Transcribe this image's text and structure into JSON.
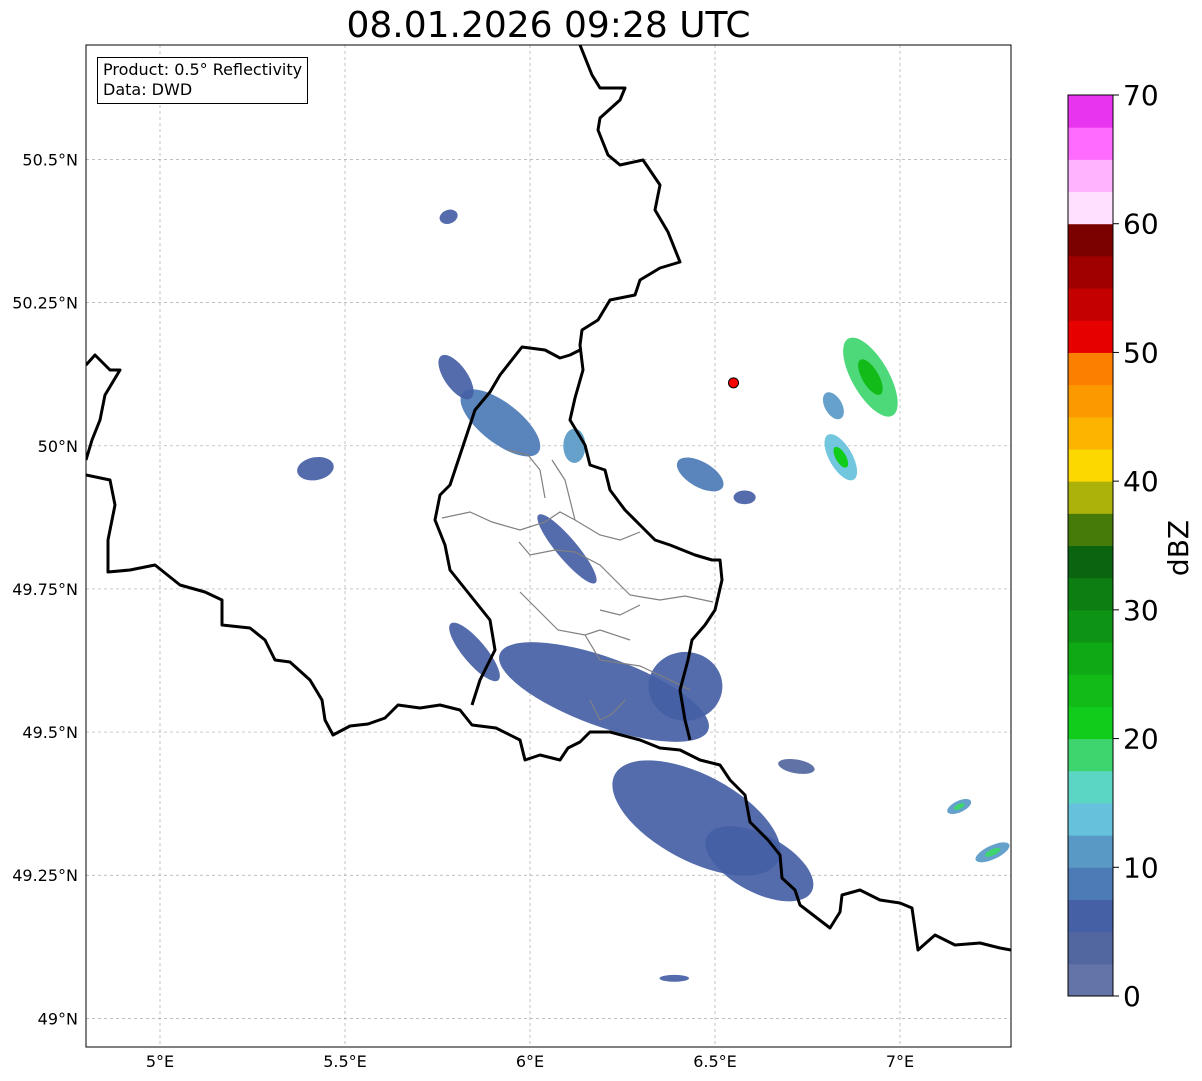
{
  "title": "08.01.2026 09:28 UTC",
  "info": {
    "product": "Product: 0.5° Reflectivity",
    "data": "Data: DWD"
  },
  "map": {
    "lon_range": [
      4.8,
      7.3
    ],
    "lat_range": [
      48.95,
      50.7
    ],
    "lon_ticks": [
      {
        "value": 5.0,
        "label": "5°E"
      },
      {
        "value": 5.5,
        "label": "5.5°E"
      },
      {
        "value": 6.0,
        "label": "6°E"
      },
      {
        "value": 6.5,
        "label": "6.5°E"
      },
      {
        "value": 7.0,
        "label": "7°E"
      }
    ],
    "lat_ticks": [
      {
        "value": 49.0,
        "label": "49°N"
      },
      {
        "value": 49.25,
        "label": "49.25°N"
      },
      {
        "value": 49.5,
        "label": "49.5°N"
      },
      {
        "value": 49.75,
        "label": "49.75°N"
      },
      {
        "value": 50.0,
        "label": "50°N"
      },
      {
        "value": 50.25,
        "label": "50.25°N"
      },
      {
        "value": 50.5,
        "label": "50.5°N"
      }
    ],
    "grid": true,
    "radar_site": {
      "lon": 6.55,
      "lat": 50.11,
      "color": "#ff0000"
    }
  },
  "colorbar": {
    "label": "dBZ",
    "min": 0,
    "max": 70,
    "ticks": [
      0,
      10,
      20,
      30,
      40,
      50,
      60,
      70
    ],
    "step": 2.5,
    "colors": [
      "#6473a8",
      "#52679f",
      "#4560a5",
      "#4c7bb6",
      "#5899c6",
      "#66c2dc",
      "#5cd6c4",
      "#3ed56f",
      "#12cc1c",
      "#12bb18",
      "#10a916",
      "#0e9414",
      "#0c7e12",
      "#0a6410",
      "#467b0a",
      "#adb20a",
      "#fdd700",
      "#fcb400",
      "#fc9800",
      "#fc7f00",
      "#e60000",
      "#c40000",
      "#a00000",
      "#7b0000",
      "#ffe0ff",
      "#ffb3ff",
      "#ff6bff",
      "#e833ef"
    ]
  },
  "echoes": [
    {
      "lon": 5.92,
      "lat": 50.04,
      "rx": 0.13,
      "ry": 0.035,
      "rot": 38,
      "dbz": 8
    },
    {
      "lon": 5.8,
      "lat": 50.12,
      "rx": 0.07,
      "ry": 0.02,
      "rot": 55,
      "dbz": 6
    },
    {
      "lon": 5.42,
      "lat": 49.96,
      "rx": 0.05,
      "ry": 0.02,
      "rot": -10,
      "dbz": 5
    },
    {
      "lon": 6.12,
      "lat": 50.0,
      "rx": 0.03,
      "ry": 0.03,
      "rot": 0,
      "dbz": 10
    },
    {
      "lon": 6.46,
      "lat": 49.95,
      "rx": 0.07,
      "ry": 0.022,
      "rot": 30,
      "dbz": 8
    },
    {
      "lon": 6.58,
      "lat": 49.91,
      "rx": 0.03,
      "ry": 0.012,
      "rot": 0,
      "dbz": 6
    },
    {
      "lon": 6.92,
      "lat": 50.12,
      "rx": 0.12,
      "ry": 0.032,
      "rot": 60,
      "dbz": 18
    },
    {
      "lon": 6.84,
      "lat": 49.98,
      "rx": 0.07,
      "ry": 0.02,
      "rot": 60,
      "dbz": 14
    },
    {
      "lon": 6.82,
      "lat": 50.07,
      "rx": 0.04,
      "ry": 0.015,
      "rot": 60,
      "dbz": 10
    },
    {
      "lon": 5.78,
      "lat": 50.4,
      "rx": 0.025,
      "ry": 0.012,
      "rot": -20,
      "dbz": 5
    },
    {
      "lon": 6.1,
      "lat": 49.82,
      "rx": 0.12,
      "ry": 0.018,
      "rot": 50,
      "dbz": 5
    },
    {
      "lon": 5.85,
      "lat": 49.64,
      "rx": 0.1,
      "ry": 0.02,
      "rot": 50,
      "dbz": 5
    },
    {
      "lon": 6.2,
      "lat": 49.57,
      "rx": 0.3,
      "ry": 0.06,
      "rot": 20,
      "dbz": 5
    },
    {
      "lon": 6.42,
      "lat": 49.58,
      "rx": 0.1,
      "ry": 0.06,
      "rot": 0,
      "dbz": 6
    },
    {
      "lon": 6.45,
      "lat": 49.35,
      "rx": 0.25,
      "ry": 0.075,
      "rot": 28,
      "dbz": 6
    },
    {
      "lon": 6.62,
      "lat": 49.27,
      "rx": 0.16,
      "ry": 0.05,
      "rot": 28,
      "dbz": 6
    },
    {
      "lon": 6.72,
      "lat": 49.44,
      "rx": 0.05,
      "ry": 0.012,
      "rot": 10,
      "dbz": 4
    },
    {
      "lon": 7.16,
      "lat": 49.37,
      "rx": 0.035,
      "ry": 0.01,
      "rot": -25,
      "dbz": 12
    },
    {
      "lon": 7.25,
      "lat": 49.29,
      "rx": 0.05,
      "ry": 0.012,
      "rot": -25,
      "dbz": 12
    },
    {
      "lon": 6.39,
      "lat": 49.07,
      "rx": 0.04,
      "ry": 0.006,
      "rot": 0,
      "dbz": 5
    }
  ]
}
